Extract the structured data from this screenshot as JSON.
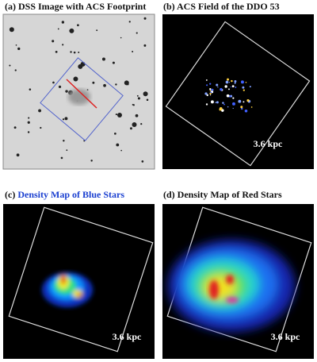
{
  "panels": [
    {
      "label": "(a)",
      "title": "DSS Image with ACS Footprint"
    },
    {
      "label": "(b)",
      "title": "ACS Field of the DDO 53",
      "scale": "3.6 kpc"
    },
    {
      "label": "(c)",
      "title": "Density Map of Blue Stars",
      "scale": "3.6 kpc"
    },
    {
      "label": "(d)",
      "title": "Density Map of Red Stars",
      "scale": "3.6 kpc"
    }
  ]
}
